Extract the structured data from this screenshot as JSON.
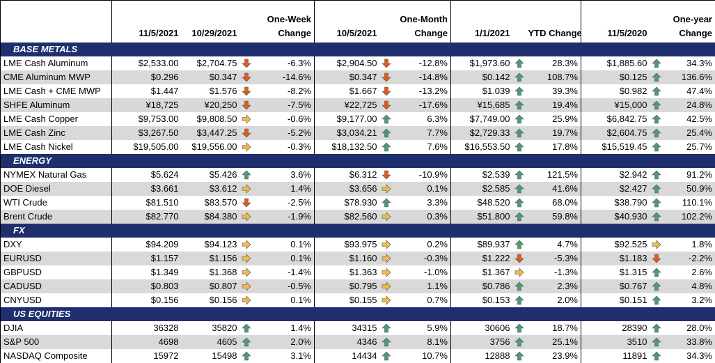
{
  "header": {
    "col1": "11/5/2021",
    "col2": "10/29/2021",
    "week_change": "One-Week\nChange",
    "col3": "10/5/2021",
    "month_change": "One-Month\nChange",
    "col4": "1/1/2021",
    "ytd_change": "YTD Change",
    "col5": "11/5/2020",
    "year_change": "One-year\nChange"
  },
  "arrow_colors": {
    "up": "#4e9a73",
    "down": "#e05a1a",
    "side": "#f2b84b"
  },
  "sections": [
    {
      "title": "BASE METALS",
      "rows": [
        {
          "name": "LME Cash Aluminum",
          "cur": "$2,533.00",
          "wk": "$2,704.75",
          "wka": "down",
          "wkc": "-6.3%",
          "mo": "$2,904.50",
          "moa": "down",
          "moc": "-12.8%",
          "ytd": "$1,973.60",
          "ytda": "up",
          "ytdc": "28.3%",
          "yr": "$1,885.60",
          "yra": "up",
          "yrc": "34.3%"
        },
        {
          "name": "CME Aluminum MWP",
          "cur": "$0.296",
          "wk": "$0.347",
          "wka": "down",
          "wkc": "-14.6%",
          "mo": "$0.347",
          "moa": "down",
          "moc": "-14.8%",
          "ytd": "$0.142",
          "ytda": "up",
          "ytdc": "108.7%",
          "yr": "$0.125",
          "yra": "up",
          "yrc": "136.6%"
        },
        {
          "name": "LME Cash + CME MWP",
          "cur": "$1.447",
          "wk": "$1.576",
          "wka": "down",
          "wkc": "-8.2%",
          "mo": "$1.667",
          "moa": "down",
          "moc": "-13.2%",
          "ytd": "$1.039",
          "ytda": "up",
          "ytdc": "39.3%",
          "yr": "$0.982",
          "yra": "up",
          "yrc": "47.4%"
        },
        {
          "name": "SHFE Aluminum",
          "cur": "¥18,725",
          "wk": "¥20,250",
          "wka": "down",
          "wkc": "-7.5%",
          "mo": "¥22,725",
          "moa": "down",
          "moc": "-17.6%",
          "ytd": "¥15,685",
          "ytda": "up",
          "ytdc": "19.4%",
          "yr": "¥15,000",
          "yra": "up",
          "yrc": "24.8%"
        },
        {
          "name": "LME Cash Copper",
          "cur": "$9,753.00",
          "wk": "$9,808.50",
          "wka": "side",
          "wkc": "-0.6%",
          "mo": "$9,177.00",
          "moa": "up",
          "moc": "6.3%",
          "ytd": "$7,749.00",
          "ytda": "up",
          "ytdc": "25.9%",
          "yr": "$6,842.75",
          "yra": "up",
          "yrc": "42.5%"
        },
        {
          "name": "LME Cash Zinc",
          "cur": "$3,267.50",
          "wk": "$3,447.25",
          "wka": "down",
          "wkc": "-5.2%",
          "mo": "$3,034.21",
          "moa": "up",
          "moc": "7.7%",
          "ytd": "$2,729.33",
          "ytda": "up",
          "ytdc": "19.7%",
          "yr": "$2,604.75",
          "yra": "up",
          "yrc": "25.4%"
        },
        {
          "name": "LME Cash Nickel",
          "cur": "$19,505.00",
          "wk": "$19,556.00",
          "wka": "side",
          "wkc": "-0.3%",
          "mo": "$18,132.50",
          "moa": "up",
          "moc": "7.6%",
          "ytd": "$16,553.50",
          "ytda": "up",
          "ytdc": "17.8%",
          "yr": "$15,519.45",
          "yra": "up",
          "yrc": "25.7%"
        }
      ]
    },
    {
      "title": "ENERGY",
      "rows": [
        {
          "name": "NYMEX Natural Gas",
          "cur": "$5.624",
          "wk": "$5.426",
          "wka": "up",
          "wkc": "3.6%",
          "mo": "$6.312",
          "moa": "down",
          "moc": "-10.9%",
          "ytd": "$2.539",
          "ytda": "up",
          "ytdc": "121.5%",
          "yr": "$2.942",
          "yra": "up",
          "yrc": "91.2%"
        },
        {
          "name": "DOE Diesel",
          "cur": "$3.661",
          "wk": "$3.612",
          "wka": "side",
          "wkc": "1.4%",
          "mo": "$3.656",
          "moa": "side",
          "moc": "0.1%",
          "ytd": "$2.585",
          "ytda": "up",
          "ytdc": "41.6%",
          "yr": "$2.427",
          "yra": "up",
          "yrc": "50.9%"
        },
        {
          "name": "WTI Crude",
          "cur": "$81.510",
          "wk": "$83.570",
          "wka": "down",
          "wkc": "-2.5%",
          "mo": "$78.930",
          "moa": "up",
          "moc": "3.3%",
          "ytd": "$48.520",
          "ytda": "up",
          "ytdc": "68.0%",
          "yr": "$38.790",
          "yra": "up",
          "yrc": "110.1%"
        },
        {
          "name": "Brent Crude",
          "cur": "$82.770",
          "wk": "$84.380",
          "wka": "side",
          "wkc": "-1.9%",
          "mo": "$82.560",
          "moa": "side",
          "moc": "0.3%",
          "ytd": "$51.800",
          "ytda": "up",
          "ytdc": "59.8%",
          "yr": "$40.930",
          "yra": "up",
          "yrc": "102.2%"
        }
      ]
    },
    {
      "title": "FX",
      "rows": [
        {
          "name": "DXY",
          "cur": "$94.209",
          "wk": "$94.123",
          "wka": "side",
          "wkc": "0.1%",
          "mo": "$93.975",
          "moa": "side",
          "moc": "0.2%",
          "ytd": "$89.937",
          "ytda": "up",
          "ytdc": "4.7%",
          "yr": "$92.525",
          "yra": "side",
          "yrc": "1.8%"
        },
        {
          "name": "EURUSD",
          "cur": "$1.157",
          "wk": "$1.156",
          "wka": "side",
          "wkc": "0.1%",
          "mo": "$1.160",
          "moa": "side",
          "moc": "-0.3%",
          "ytd": "$1.222",
          "ytda": "down",
          "ytdc": "-5.3%",
          "yr": "$1.183",
          "yra": "down",
          "yrc": "-2.2%"
        },
        {
          "name": "GBPUSD",
          "cur": "$1.349",
          "wk": "$1.368",
          "wka": "side",
          "wkc": "-1.4%",
          "mo": "$1.363",
          "moa": "side",
          "moc": "-1.0%",
          "ytd": "$1.367",
          "ytda": "side",
          "ytdc": "-1.3%",
          "yr": "$1.315",
          "yra": "up",
          "yrc": "2.6%"
        },
        {
          "name": "CADUSD",
          "cur": "$0.803",
          "wk": "$0.807",
          "wka": "side",
          "wkc": "-0.5%",
          "mo": "$0.795",
          "moa": "side",
          "moc": "1.1%",
          "ytd": "$0.786",
          "ytda": "up",
          "ytdc": "2.3%",
          "yr": "$0.767",
          "yra": "up",
          "yrc": "4.8%"
        },
        {
          "name": "CNYUSD",
          "cur": "$0.156",
          "wk": "$0.156",
          "wka": "side",
          "wkc": "0.1%",
          "mo": "$0.155",
          "moa": "side",
          "moc": "0.7%",
          "ytd": "$0.153",
          "ytda": "up",
          "ytdc": "2.0%",
          "yr": "$0.151",
          "yra": "up",
          "yrc": "3.2%"
        }
      ]
    },
    {
      "title": "US EQUITIES",
      "rows": [
        {
          "name": "DJIA",
          "cur": "36328",
          "wk": "35820",
          "wka": "up",
          "wkc": "1.4%",
          "mo": "34315",
          "moa": "up",
          "moc": "5.9%",
          "ytd": "30606",
          "ytda": "up",
          "ytdc": "18.7%",
          "yr": "28390",
          "yra": "up",
          "yrc": "28.0%"
        },
        {
          "name": "S&P 500",
          "cur": "4698",
          "wk": "4605",
          "wka": "up",
          "wkc": "2.0%",
          "mo": "4346",
          "moa": "up",
          "moc": "8.1%",
          "ytd": "3756",
          "ytda": "up",
          "ytdc": "25.1%",
          "yr": "3510",
          "yra": "up",
          "yrc": "33.8%"
        },
        {
          "name": "NASDAQ Composite",
          "cur": "15972",
          "wk": "15498",
          "wka": "up",
          "wkc": "3.1%",
          "mo": "14434",
          "moa": "up",
          "moc": "10.7%",
          "ytd": "12888",
          "ytda": "up",
          "ytdc": "23.9%",
          "yr": "11891",
          "yra": "up",
          "yrc": "34.3%"
        }
      ]
    }
  ]
}
